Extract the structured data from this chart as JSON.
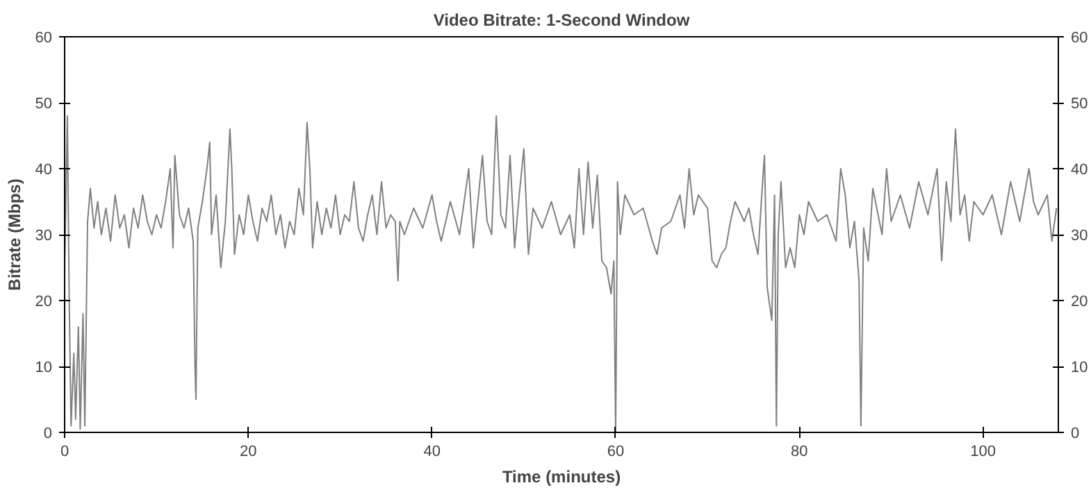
{
  "chart_data": {
    "type": "line",
    "title": "Video Bitrate: 1-Second Window",
    "xlabel": "Time (minutes)",
    "ylabel": "Bitrate (Mbps)",
    "xlim": [
      0,
      108.2
    ],
    "xticks": [
      0,
      20,
      40,
      60,
      80,
      100
    ],
    "ylim": [
      0,
      60
    ],
    "yticks": [
      0,
      10,
      20,
      30,
      40,
      50,
      60
    ],
    "y2lim": [
      0,
      60
    ],
    "y2ticks": [
      0,
      10,
      20,
      30,
      40,
      50,
      60
    ],
    "grid": false,
    "marker": "none",
    "line_style": "solid",
    "series": [
      {
        "color": "#808080",
        "x": [
          0,
          0.3,
          0.5,
          0.7,
          1,
          1.2,
          1.5,
          1.7,
          2,
          2.2,
          2.4,
          2.5,
          2.8,
          3.2,
          3.6,
          4,
          4.5,
          5,
          5.5,
          6,
          6.5,
          7,
          7.5,
          8,
          8.5,
          9,
          9.5,
          10,
          10.5,
          11,
          11.5,
          11.8,
          12,
          12.5,
          13,
          13.5,
          14,
          14.2,
          14.3,
          14.5,
          15,
          15.5,
          15.8,
          16,
          16.5,
          17,
          17.5,
          18,
          18.2,
          18.5,
          19,
          19.5,
          20,
          20.5,
          21,
          21.5,
          22,
          22.5,
          23,
          23.5,
          24,
          24.5,
          25,
          25.5,
          26,
          26.4,
          26.7,
          27,
          27.5,
          28,
          28.5,
          29,
          29.5,
          30,
          30.5,
          31,
          31.5,
          32,
          32.5,
          33,
          33.5,
          34,
          34.5,
          35,
          35.5,
          36,
          36.3,
          36.5,
          37,
          38,
          39,
          40,
          40.5,
          41,
          42,
          43,
          44,
          44.5,
          45,
          45.5,
          46,
          46.5,
          47,
          47.5,
          48,
          48.5,
          49,
          49.5,
          50,
          50.5,
          51,
          52,
          53,
          54,
          55,
          55.5,
          56,
          56.5,
          57,
          57.5,
          58,
          58.5,
          59,
          59.5,
          59.8,
          60,
          60.2,
          60.5,
          61,
          62,
          63,
          64,
          64.5,
          65,
          66,
          67,
          67.5,
          68,
          68.5,
          69,
          70,
          70.5,
          71,
          71.5,
          72,
          72.5,
          73,
          74,
          74.5,
          75,
          75.5,
          76,
          76.2,
          76.5,
          77,
          77.3,
          77.5,
          77.7,
          78,
          78.5,
          79,
          79.5,
          80,
          80.5,
          81,
          82,
          83,
          84,
          84.5,
          85,
          85.5,
          86,
          86.5,
          86.7,
          87,
          87.5,
          88,
          89,
          89.5,
          90,
          91,
          92,
          93,
          94,
          95,
          95.5,
          96,
          96.5,
          97,
          97.5,
          98,
          98.5,
          99,
          100,
          101,
          102,
          103,
          104,
          105,
          105.5,
          106,
          107,
          107.5,
          108
        ],
        "values": [
          25,
          48,
          20,
          1,
          12,
          2,
          16,
          0.5,
          18,
          1,
          22,
          32,
          37,
          31,
          35,
          30,
          34,
          29,
          36,
          31,
          33,
          28,
          34,
          31,
          36,
          32,
          30,
          33,
          31,
          35,
          40,
          28,
          42,
          33,
          31,
          34,
          29,
          10,
          5,
          31,
          35,
          40,
          44,
          30,
          36,
          25,
          32,
          46,
          40,
          27,
          33,
          30,
          36,
          32,
          29,
          34,
          32,
          36,
          30,
          33,
          28,
          32,
          30,
          37,
          33,
          47,
          40,
          28,
          35,
          30,
          34,
          31,
          36,
          30,
          33,
          32,
          38,
          31,
          29,
          33,
          36,
          30,
          38,
          31,
          33,
          32,
          23,
          32,
          30,
          34,
          31,
          36,
          32,
          29,
          35,
          30,
          40,
          28,
          35,
          42,
          32,
          30,
          48,
          33,
          31,
          42,
          28,
          36,
          43,
          27,
          34,
          31,
          35,
          30,
          33,
          28,
          40,
          30,
          41,
          31,
          39,
          26,
          25,
          21,
          26,
          0,
          38,
          30,
          36,
          33,
          34,
          29,
          27,
          31,
          32,
          36,
          31,
          40,
          33,
          36,
          34,
          26,
          25,
          27,
          28,
          32,
          35,
          32,
          34,
          30,
          27,
          38,
          42,
          22,
          17,
          36,
          1,
          30,
          38,
          25,
          28,
          25,
          33,
          30,
          35,
          32,
          33,
          29,
          40,
          36,
          28,
          32,
          23,
          1,
          31,
          26,
          37,
          30,
          40,
          32,
          36,
          31,
          38,
          33,
          40,
          26,
          38,
          32,
          46,
          33,
          36,
          29,
          35,
          33,
          36,
          30,
          38,
          32,
          40,
          35,
          33,
          36,
          29,
          34
        ]
      }
    ]
  }
}
